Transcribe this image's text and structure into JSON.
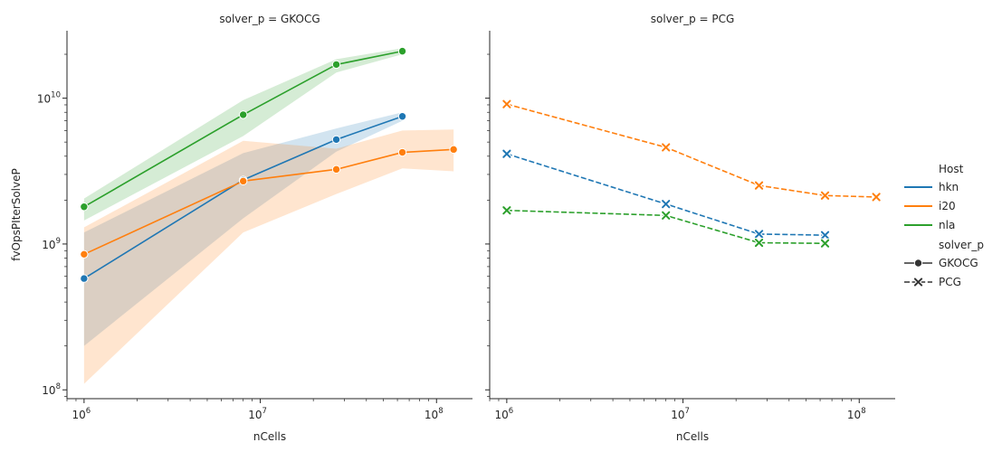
{
  "chart_data": {
    "type": "line",
    "x_scale": "log",
    "y_scale": "log",
    "xlabel": "nCells",
    "ylabel": "fvOpsPIterSolveP",
    "xlim": [
      800000,
      160000000
    ],
    "ylim": [
      87000000,
      29000000000
    ],
    "x_ticks": [
      {
        "base": "10",
        "exp": "6"
      },
      {
        "base": "10",
        "exp": "7"
      },
      {
        "base": "10",
        "exp": "8"
      }
    ],
    "y_ticks": [
      {
        "base": "10",
        "exp": "8"
      },
      {
        "base": "10",
        "exp": "9"
      },
      {
        "base": "10",
        "exp": "10"
      }
    ],
    "legend": {
      "placement": "right",
      "hue_title": "Host",
      "style_title": "solver_p",
      "hosts": [
        {
          "label": "hkn",
          "color": "#1f77b4"
        },
        {
          "label": "i20",
          "color": "#ff7f0e"
        },
        {
          "label": "nla",
          "color": "#2ca02c"
        }
      ],
      "styles": [
        {
          "label": "GKOCG",
          "marker": "circle",
          "dash": "solid"
        },
        {
          "label": "PCG",
          "marker": "x",
          "dash": "dashed"
        }
      ]
    },
    "panels": [
      {
        "title": "solver_p = GKOCG",
        "marker": "circle",
        "dash": "solid",
        "series": [
          {
            "host": "hkn",
            "color": "#1f77b4",
            "x": [
              1000000,
              8000000,
              27000000,
              64000000
            ],
            "y": [
              580000000,
              2750000000,
              5200000000,
              7500000000
            ],
            "band_low": [
              200000000,
              1500000000,
              4300000000,
              7000000000
            ],
            "band_high": [
              1200000000,
              4200000000,
              6200000000,
              8000000000
            ]
          },
          {
            "host": "i20",
            "color": "#ff7f0e",
            "x": [
              1000000,
              8000000,
              27000000,
              64000000,
              125000000
            ],
            "y": [
              850000000,
              2700000000,
              3250000000,
              4250000000,
              4450000000
            ],
            "band_low": [
              110000000,
              1200000000,
              2200000000,
              3300000000,
              3150000000
            ],
            "band_high": [
              1300000000,
              5100000000,
              4500000000,
              6000000000,
              6100000000
            ]
          },
          {
            "host": "nla",
            "color": "#2ca02c",
            "x": [
              1000000,
              8000000,
              27000000,
              64000000
            ],
            "y": [
              1800000000,
              7700000000,
              17000000000,
              21000000000
            ],
            "band_low": [
              1450000000,
              5500000000,
              15000000000,
              20000000000
            ],
            "band_high": [
              2050000000,
              9700000000,
              18500000000,
              22000000000
            ]
          }
        ]
      },
      {
        "title": "solver_p = PCG",
        "marker": "x",
        "dash": "dashed",
        "series": [
          {
            "host": "hkn",
            "color": "#1f77b4",
            "x": [
              1000000,
              8000000,
              27000000,
              64000000
            ],
            "y": [
              4150000000,
              1880000000,
              1170000000,
              1150000000
            ]
          },
          {
            "host": "i20",
            "color": "#ff7f0e",
            "x": [
              1000000,
              8000000,
              27000000,
              64000000,
              125000000
            ],
            "y": [
              9100000000,
              4600000000,
              2520000000,
              2150000000,
              2100000000
            ]
          },
          {
            "host": "nla",
            "color": "#2ca02c",
            "x": [
              1000000,
              8000000,
              27000000,
              64000000
            ],
            "y": [
              1700000000,
              1570000000,
              1020000000,
              1010000000
            ]
          }
        ]
      }
    ]
  }
}
